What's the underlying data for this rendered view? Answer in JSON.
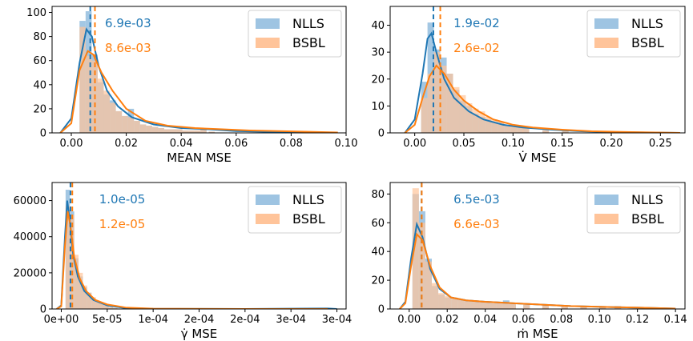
{
  "colors": {
    "nlls": "#1f77b4",
    "bsbl": "#ff7f0e",
    "nlls_fill": "#9ec4e2",
    "bsbl_fill": "#ffc49a"
  },
  "chart_data": [
    {
      "type": "histogram",
      "xlabel": "MEAN MSE",
      "xlim": [
        -0.007,
        0.1
      ],
      "ylim": [
        0,
        105
      ],
      "xticks": [
        0.0,
        0.02,
        0.04,
        0.06,
        0.08,
        0.1
      ],
      "xtick_labels": [
        "0.00",
        "0.02",
        "0.04",
        "0.06",
        "0.08",
        "0.10"
      ],
      "yticks": [
        0,
        20,
        40,
        60,
        80,
        100
      ],
      "ytick_labels": [
        "0",
        "20",
        "40",
        "60",
        "80",
        "100"
      ],
      "legend": {
        "position": "top-right"
      },
      "bin_width": 0.0022,
      "series": [
        {
          "name": "NLLS",
          "mean": 0.0069,
          "mean_label": "6.9e-03",
          "bins": [
            0.003,
            0.0052,
            0.0074,
            0.0096,
            0.0118,
            0.014,
            0.0162,
            0.0184,
            0.0206,
            0.0228,
            0.025,
            0.0272,
            0.0294,
            0.0316,
            0.0338,
            0.036,
            0.0382,
            0.0404,
            0.0426,
            0.0448,
            0.047,
            0.05
          ],
          "counts": [
            93,
            101,
            65,
            42,
            32,
            27,
            18,
            14,
            20,
            10,
            7,
            6,
            5,
            4,
            3,
            3,
            3,
            2,
            2,
            2,
            4,
            1
          ],
          "kde": [
            [
              -0.004,
              0
            ],
            [
              0.0,
              12
            ],
            [
              0.003,
              58
            ],
            [
              0.0055,
              86
            ],
            [
              0.0075,
              80
            ],
            [
              0.01,
              55
            ],
            [
              0.013,
              35
            ],
            [
              0.017,
              22
            ],
            [
              0.022,
              13
            ],
            [
              0.03,
              7
            ],
            [
              0.04,
              4
            ],
            [
              0.05,
              3
            ],
            [
              0.06,
              1.5
            ],
            [
              0.07,
              1
            ],
            [
              0.08,
              0.5
            ],
            [
              0.095,
              0.2
            ]
          ]
        },
        {
          "name": "BSBL",
          "mean": 0.0086,
          "mean_label": "8.6e-03",
          "bins": [
            0.003,
            0.0052,
            0.0074,
            0.0096,
            0.0118,
            0.014,
            0.0162,
            0.0184,
            0.0206,
            0.0228,
            0.025,
            0.0272,
            0.0294,
            0.0316,
            0.0338,
            0.036,
            0.0382,
            0.0404,
            0.0426,
            0.0448,
            0.047,
            0.05
          ],
          "counts": [
            88,
            64,
            60,
            45,
            35,
            25,
            18,
            14,
            13,
            10,
            7,
            6,
            5,
            4,
            3,
            3,
            3,
            2,
            2,
            2,
            3,
            1
          ],
          "kde": [
            [
              -0.004,
              0
            ],
            [
              0.0,
              8
            ],
            [
              0.003,
              52
            ],
            [
              0.006,
              68
            ],
            [
              0.008,
              65
            ],
            [
              0.011,
              50
            ],
            [
              0.015,
              35
            ],
            [
              0.02,
              20
            ],
            [
              0.027,
              10
            ],
            [
              0.035,
              6
            ],
            [
              0.045,
              4
            ],
            [
              0.055,
              3
            ],
            [
              0.065,
              2
            ],
            [
              0.075,
              1.5
            ],
            [
              0.085,
              1
            ],
            [
              0.097,
              0.3
            ]
          ]
        }
      ]
    },
    {
      "type": "histogram",
      "xlabel": "V̇ MSE",
      "xlim": [
        -0.025,
        0.275
      ],
      "ylim": [
        0,
        47
      ],
      "xticks": [
        0.0,
        0.05,
        0.1,
        0.15,
        0.2,
        0.25
      ],
      "xtick_labels": [
        "0.00",
        "0.05",
        "0.10",
        "0.15",
        "0.20",
        "0.25"
      ],
      "yticks": [
        0,
        10,
        20,
        30,
        40
      ],
      "ytick_labels": [
        "0",
        "10",
        "20",
        "30",
        "40"
      ],
      "legend": {
        "position": "top-right"
      },
      "bin_width": 0.0065,
      "series": [
        {
          "name": "NLLS",
          "mean": 0.019,
          "mean_label": "1.9e-02",
          "bins": [
            0.0065,
            0.013,
            0.0195,
            0.026,
            0.0325,
            0.039,
            0.0455,
            0.052,
            0.0585,
            0.065,
            0.0715,
            0.078,
            0.0845,
            0.091,
            0.0975,
            0.104,
            0.11,
            0.13,
            0.15
          ],
          "counts": [
            19,
            41,
            31,
            28,
            22,
            16,
            12,
            10,
            7,
            6,
            5,
            4,
            4,
            3,
            2,
            2,
            2,
            1,
            1
          ],
          "kde": [
            [
              -0.01,
              0
            ],
            [
              0.0,
              5
            ],
            [
              0.008,
              22
            ],
            [
              0.013,
              35
            ],
            [
              0.017,
              37
            ],
            [
              0.022,
              30
            ],
            [
              0.03,
              20
            ],
            [
              0.04,
              13
            ],
            [
              0.055,
              8
            ],
            [
              0.07,
              5
            ],
            [
              0.09,
              3
            ],
            [
              0.11,
              2
            ],
            [
              0.14,
              1.2
            ],
            [
              0.17,
              0.6
            ],
            [
              0.2,
              0.3
            ],
            [
              0.27,
              0
            ]
          ]
        },
        {
          "name": "BSBL",
          "mean": 0.026,
          "mean_label": "2.6e-02",
          "bins": [
            0.0065,
            0.013,
            0.0195,
            0.026,
            0.0325,
            0.039,
            0.0455,
            0.052,
            0.0585,
            0.065,
            0.0715,
            0.078,
            0.0845,
            0.091,
            0.0975,
            0.104,
            0.11,
            0.13,
            0.15
          ],
          "counts": [
            13,
            22,
            30,
            25,
            22,
            17,
            14,
            11,
            9,
            8,
            6,
            5,
            4,
            3,
            3,
            2,
            2,
            1,
            1
          ],
          "kde": [
            [
              -0.01,
              0
            ],
            [
              0.0,
              3
            ],
            [
              0.008,
              13
            ],
            [
              0.015,
              21
            ],
            [
              0.022,
              25
            ],
            [
              0.03,
              22
            ],
            [
              0.04,
              16
            ],
            [
              0.05,
              12
            ],
            [
              0.065,
              8
            ],
            [
              0.08,
              5
            ],
            [
              0.1,
              3
            ],
            [
              0.12,
              2
            ],
            [
              0.15,
              1.2
            ],
            [
              0.18,
              0.6
            ],
            [
              0.22,
              0.3
            ],
            [
              0.27,
              0
            ]
          ]
        }
      ]
    },
    {
      "type": "histogram",
      "xlabel": "γ̇ MSE",
      "xlim": [
        -1e-05,
        0.00031
      ],
      "ylim": [
        0,
        70000
      ],
      "xticks": [
        0.0,
        5e-05,
        0.0001,
        0.00015,
        0.0002,
        0.00025,
        0.0003
      ],
      "xtick_labels": [
        "0e+00",
        "5e-05",
        "1e-04",
        "2e-04",
        "2e-04",
        "3e-04",
        "3e-04"
      ],
      "yticks": [
        0,
        20000,
        40000,
        60000
      ],
      "ytick_labels": [
        "0",
        "20000",
        "40000",
        "60000"
      ],
      "legend": {
        "position": "top-right"
      },
      "bin_width": 4.7e-06,
      "series": [
        {
          "name": "NLLS",
          "mean": 1e-05,
          "mean_label": "1.0e-05",
          "bins": [
            4.7e-06,
            9.4e-06,
            1.41e-05,
            1.88e-05,
            2.35e-05,
            2.82e-05,
            3.29e-05,
            3.76e-05,
            4.23e-05,
            4.7e-05,
            5.17e-05,
            5.64e-05
          ],
          "counts": [
            66000,
            54000,
            28000,
            18000,
            12000,
            9000,
            6000,
            4000,
            3000,
            2000,
            1000,
            500
          ],
          "kde": [
            [
              -5e-06,
              0
            ],
            [
              0.0,
              2000
            ],
            [
              4e-06,
              40000
            ],
            [
              6.5e-06,
              60000
            ],
            [
              9e-06,
              50000
            ],
            [
              1.3e-05,
              30000
            ],
            [
              1.8e-05,
              18000
            ],
            [
              2.5e-05,
              10000
            ],
            [
              3.5e-05,
              5000
            ],
            [
              5e-05,
              2000
            ],
            [
              7e-05,
              500
            ],
            [
              0.0001,
              100
            ],
            [
              0.0002,
              0
            ],
            [
              0.00029,
              300
            ],
            [
              0.0003,
              0
            ]
          ]
        },
        {
          "name": "BSBL",
          "mean": 1.2e-05,
          "mean_label": "1.2e-05",
          "bins": [
            4.7e-06,
            9.4e-06,
            1.41e-05,
            1.88e-05,
            2.35e-05,
            2.82e-05,
            3.29e-05,
            3.76e-05,
            4.23e-05,
            4.7e-05,
            5.17e-05,
            5.64e-05
          ],
          "counts": [
            57000,
            52000,
            30000,
            20000,
            13000,
            9000,
            6500,
            4500,
            3000,
            2000,
            1000,
            500
          ],
          "kde": [
            [
              -5e-06,
              0
            ],
            [
              0.0,
              1500
            ],
            [
              4e-06,
              35000
            ],
            [
              7e-06,
              54000
            ],
            [
              1e-05,
              46000
            ],
            [
              1.4e-05,
              29000
            ],
            [
              2e-05,
              17000
            ],
            [
              2.7e-05,
              10000
            ],
            [
              3.7e-05,
              5000
            ],
            [
              5e-05,
              2500
            ],
            [
              7e-05,
              800
            ],
            [
              0.0001,
              150
            ],
            [
              0.0002,
              0
            ],
            [
              0.00029,
              0
            ]
          ]
        }
      ]
    },
    {
      "type": "histogram",
      "xlabel": "ṁ MSE",
      "xlim": [
        -0.01,
        0.145
      ],
      "ylim": [
        0,
        88
      ],
      "xticks": [
        0.0,
        0.02,
        0.04,
        0.06,
        0.08,
        0.1,
        0.12,
        0.14
      ],
      "xtick_labels": [
        "0.00",
        "0.02",
        "0.04",
        "0.06",
        "0.08",
        "0.10",
        "0.12",
        "0.14"
      ],
      "yticks": [
        0,
        20,
        40,
        60,
        80
      ],
      "ytick_labels": [
        "0",
        "20",
        "40",
        "60",
        "80"
      ],
      "legend": {
        "position": "top-right"
      },
      "bin_width": 0.0034,
      "series": [
        {
          "name": "NLLS",
          "mean": 0.0065,
          "mean_label": "6.5e-03",
          "bins": [
            0.0017,
            0.0051,
            0.0085,
            0.0119,
            0.0153,
            0.0187,
            0.0221,
            0.0255,
            0.0289,
            0.0323,
            0.0357,
            0.0391,
            0.0425,
            0.0459,
            0.0493,
            0.0527,
            0.06,
            0.07,
            0.08,
            0.09,
            0.1,
            0.108
          ],
          "counts": [
            80,
            68,
            35,
            16,
            10,
            8,
            7,
            7,
            6,
            5,
            5,
            5,
            4,
            4,
            6,
            4,
            3,
            3,
            2,
            2,
            2,
            2
          ],
          "kde": [
            [
              -0.005,
              0
            ],
            [
              -0.002,
              5
            ],
            [
              0.001,
              35
            ],
            [
              0.004,
              59
            ],
            [
              0.007,
              50
            ],
            [
              0.011,
              28
            ],
            [
              0.016,
              14
            ],
            [
              0.022,
              8
            ],
            [
              0.03,
              6
            ],
            [
              0.04,
              5
            ],
            [
              0.055,
              4
            ],
            [
              0.07,
              3
            ],
            [
              0.085,
              2
            ],
            [
              0.1,
              1.5
            ],
            [
              0.12,
              1
            ],
            [
              0.14,
              0.3
            ]
          ]
        },
        {
          "name": "BSBL",
          "mean": 0.0066,
          "mean_label": "6.6e-03",
          "bins": [
            0.0017,
            0.0051,
            0.0085,
            0.0119,
            0.0153,
            0.0187,
            0.0221,
            0.0255,
            0.0289,
            0.0323,
            0.0357,
            0.0391,
            0.0425,
            0.0459,
            0.0493,
            0.0527,
            0.06,
            0.07,
            0.08,
            0.09,
            0.1,
            0.108
          ],
          "counts": [
            84,
            60,
            33,
            18,
            11,
            9,
            8,
            7,
            6,
            5,
            5,
            5,
            4,
            4,
            4,
            4,
            3,
            3,
            2,
            2,
            2,
            2
          ],
          "kde": [
            [
              -0.005,
              0
            ],
            [
              -0.002,
              4
            ],
            [
              0.001,
              30
            ],
            [
              0.004,
              52
            ],
            [
              0.007,
              48
            ],
            [
              0.011,
              30
            ],
            [
              0.016,
              15
            ],
            [
              0.022,
              8
            ],
            [
              0.03,
              6
            ],
            [
              0.04,
              5
            ],
            [
              0.055,
              4
            ],
            [
              0.07,
              3
            ],
            [
              0.085,
              2
            ],
            [
              0.1,
              1.5
            ],
            [
              0.12,
              1
            ],
            [
              0.14,
              0.3
            ]
          ]
        }
      ]
    }
  ]
}
